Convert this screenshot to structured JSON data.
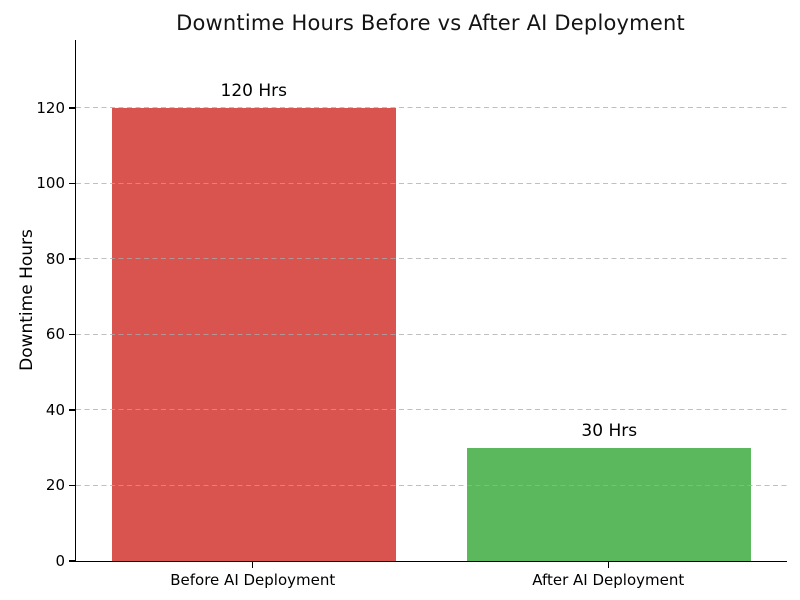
{
  "chart_data": {
    "type": "bar",
    "title": "Downtime Hours Before vs After AI Deployment",
    "categories": [
      "Before AI Deployment",
      "After AI Deployment"
    ],
    "values": [
      120,
      30
    ],
    "bar_labels": [
      "120 Hrs",
      "30 Hrs"
    ],
    "bar_colors": [
      "#d9534f",
      "#5cb85c"
    ],
    "xlabel": "",
    "ylabel": "Downtime Hours",
    "ylim": [
      0,
      138
    ],
    "yticks": [
      0,
      20,
      40,
      60,
      80,
      100,
      120
    ],
    "grid": "horizontal-dashed-on-top",
    "grid_color": "#c8c8c8",
    "bar_width_fraction": 0.8,
    "legend_position": "none",
    "title_color": "#141414",
    "background_color": "#ffffff"
  }
}
